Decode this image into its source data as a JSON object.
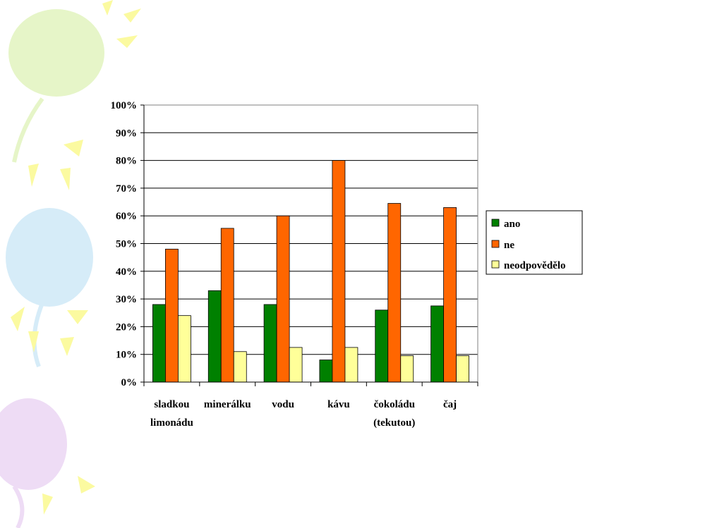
{
  "chart_data": {
    "type": "bar",
    "categories": [
      [
        "sladkou",
        "limonádu"
      ],
      [
        "minerálku"
      ],
      [
        "vodu"
      ],
      [
        "kávu"
      ],
      [
        "čokoládu",
        "(tekutou)"
      ],
      [
        "čaj"
      ]
    ],
    "series": [
      {
        "name": "ano",
        "color": "#008000",
        "values": [
          28,
          33,
          28,
          8,
          26,
          27.5
        ]
      },
      {
        "name": "ne",
        "color": "#ff6600",
        "values": [
          48,
          55.5,
          60,
          80,
          64.5,
          63
        ]
      },
      {
        "name": "neodpovědělo",
        "color": "#ffff99",
        "values": [
          24,
          11,
          12.5,
          12.5,
          9.5,
          9.5
        ]
      }
    ],
    "ylim": [
      0,
      100
    ],
    "yticks": [
      "0%",
      "10%",
      "20%",
      "30%",
      "40%",
      "50%",
      "60%",
      "70%",
      "80%",
      "90%",
      "100%"
    ],
    "grid": true,
    "legend_position": "right"
  },
  "theme": {
    "decor_colors": [
      "#e6f5c8",
      "#d6ecf8",
      "#eedcf5",
      "#fbfaa0"
    ]
  }
}
